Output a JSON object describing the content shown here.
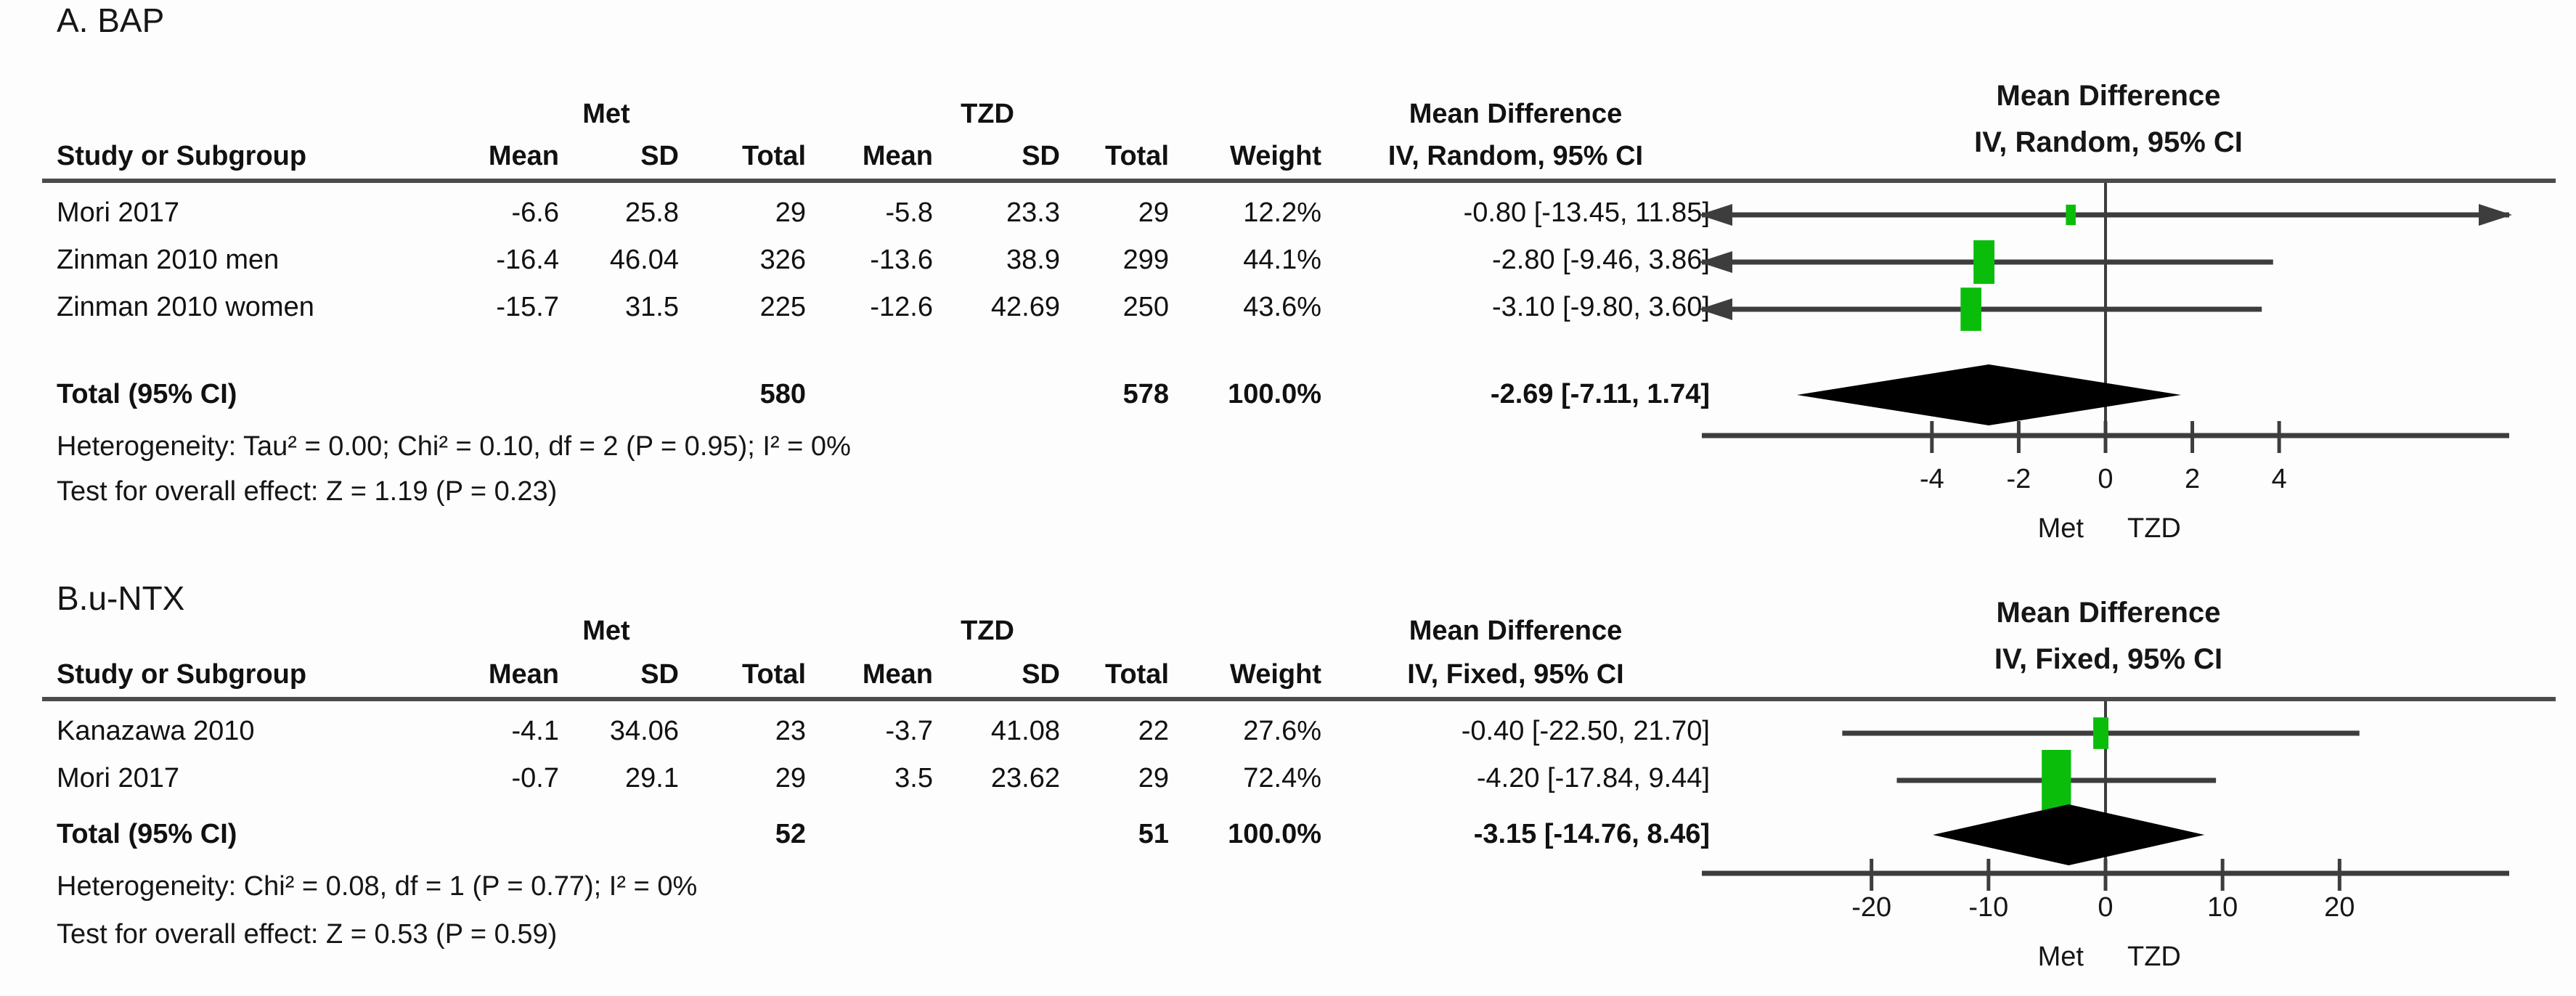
{
  "chart_data": [
    {
      "type": "forest",
      "title": "A. BAP",
      "effect_measure_header": "Mean Difference",
      "method_header": "IV, Random, 95% CI",
      "columns": {
        "study": "Study or Subgroup",
        "group1": "Met",
        "group2": "TZD",
        "mean": "Mean",
        "sd": "SD",
        "total": "Total",
        "weight": "Weight"
      },
      "studies": [
        {
          "name": "Mori 2017",
          "g1_mean": "-6.6",
          "g1_sd": "25.8",
          "g1_total": "29",
          "g2_mean": "-5.8",
          "g2_sd": "23.3",
          "g2_total": "29",
          "weight": "12.2%",
          "md_ci": "-0.80 [-13.45, 11.85]",
          "est": -0.8,
          "lo": -13.45,
          "hi": 11.85,
          "weight_pct": 12.2
        },
        {
          "name": "Zinman 2010 men",
          "g1_mean": "-16.4",
          "g1_sd": "46.04",
          "g1_total": "326",
          "g2_mean": "-13.6",
          "g2_sd": "38.9",
          "g2_total": "299",
          "weight": "44.1%",
          "md_ci": "-2.80 [-9.46, 3.86]",
          "est": -2.8,
          "lo": -9.46,
          "hi": 3.86,
          "weight_pct": 44.1
        },
        {
          "name": "Zinman 2010 women",
          "g1_mean": "-15.7",
          "g1_sd": "31.5",
          "g1_total": "225",
          "g2_mean": "-12.6",
          "g2_sd": "42.69",
          "g2_total": "250",
          "weight": "43.6%",
          "md_ci": "-3.10 [-9.80, 3.60]",
          "est": -3.1,
          "lo": -9.8,
          "hi": 3.6,
          "weight_pct": 43.6
        }
      ],
      "total": {
        "label": "Total (95% CI)",
        "g1_total": "580",
        "g2_total": "578",
        "weight": "100.0%",
        "md_ci": "-2.69 [-7.11, 1.74]",
        "est": -2.69,
        "lo": -7.11,
        "hi": 1.74
      },
      "heterogeneity": "Heterogeneity: Tau² = 0.00; Chi² = 0.10, df = 2 (P = 0.95); I² = 0%",
      "overall_effect": "Test for overall effect: Z = 1.19 (P = 0.23)",
      "axis": {
        "range": [
          -9.3,
          9.3
        ],
        "ticks": [
          -4,
          -2,
          0,
          2,
          4
        ],
        "favours_left": "Met",
        "favours_right": "TZD"
      },
      "colors": {
        "marker": "#0bbd0b",
        "line": "#3d3d3d",
        "diamond": "#000000"
      }
    },
    {
      "type": "forest",
      "title": "B.u-NTX",
      "effect_measure_header": "Mean Difference",
      "method_header": "IV, Fixed, 95% CI",
      "columns": {
        "study": "Study or Subgroup",
        "group1": "Met",
        "group2": "TZD",
        "mean": "Mean",
        "sd": "SD",
        "total": "Total",
        "weight": "Weight"
      },
      "studies": [
        {
          "name": "Kanazawa 2010",
          "g1_mean": "-4.1",
          "g1_sd": "34.06",
          "g1_total": "23",
          "g2_mean": "-3.7",
          "g2_sd": "41.08",
          "g2_total": "22",
          "weight": "27.6%",
          "md_ci": "-0.40 [-22.50, 21.70]",
          "est": -0.4,
          "lo": -22.5,
          "hi": 21.7,
          "weight_pct": 27.6
        },
        {
          "name": "Mori 2017",
          "g1_mean": "-0.7",
          "g1_sd": "29.1",
          "g1_total": "29",
          "g2_mean": "3.5",
          "g2_sd": "23.62",
          "g2_total": "29",
          "weight": "72.4%",
          "md_ci": "-4.20 [-17.84, 9.44]",
          "est": -4.2,
          "lo": -17.84,
          "hi": 9.44,
          "weight_pct": 72.4
        }
      ],
      "total": {
        "label": "Total (95% CI)",
        "g1_total": "52",
        "g2_total": "51",
        "weight": "100.0%",
        "md_ci": "-3.15 [-14.76, 8.46]",
        "est": -3.15,
        "lo": -14.76,
        "hi": 8.46
      },
      "heterogeneity": "Heterogeneity: Chi² = 0.08, df = 1 (P = 0.77); I² = 0%",
      "overall_effect": "Test for overall effect: Z = 0.53 (P = 0.59)",
      "axis": {
        "range": [
          -34.5,
          34.5
        ],
        "ticks": [
          -20,
          -10,
          0,
          10,
          20
        ],
        "favours_left": "Met",
        "favours_right": "TZD"
      },
      "colors": {
        "marker": "#0bbd0b",
        "line": "#3d3d3d",
        "diamond": "#000000"
      }
    }
  ]
}
